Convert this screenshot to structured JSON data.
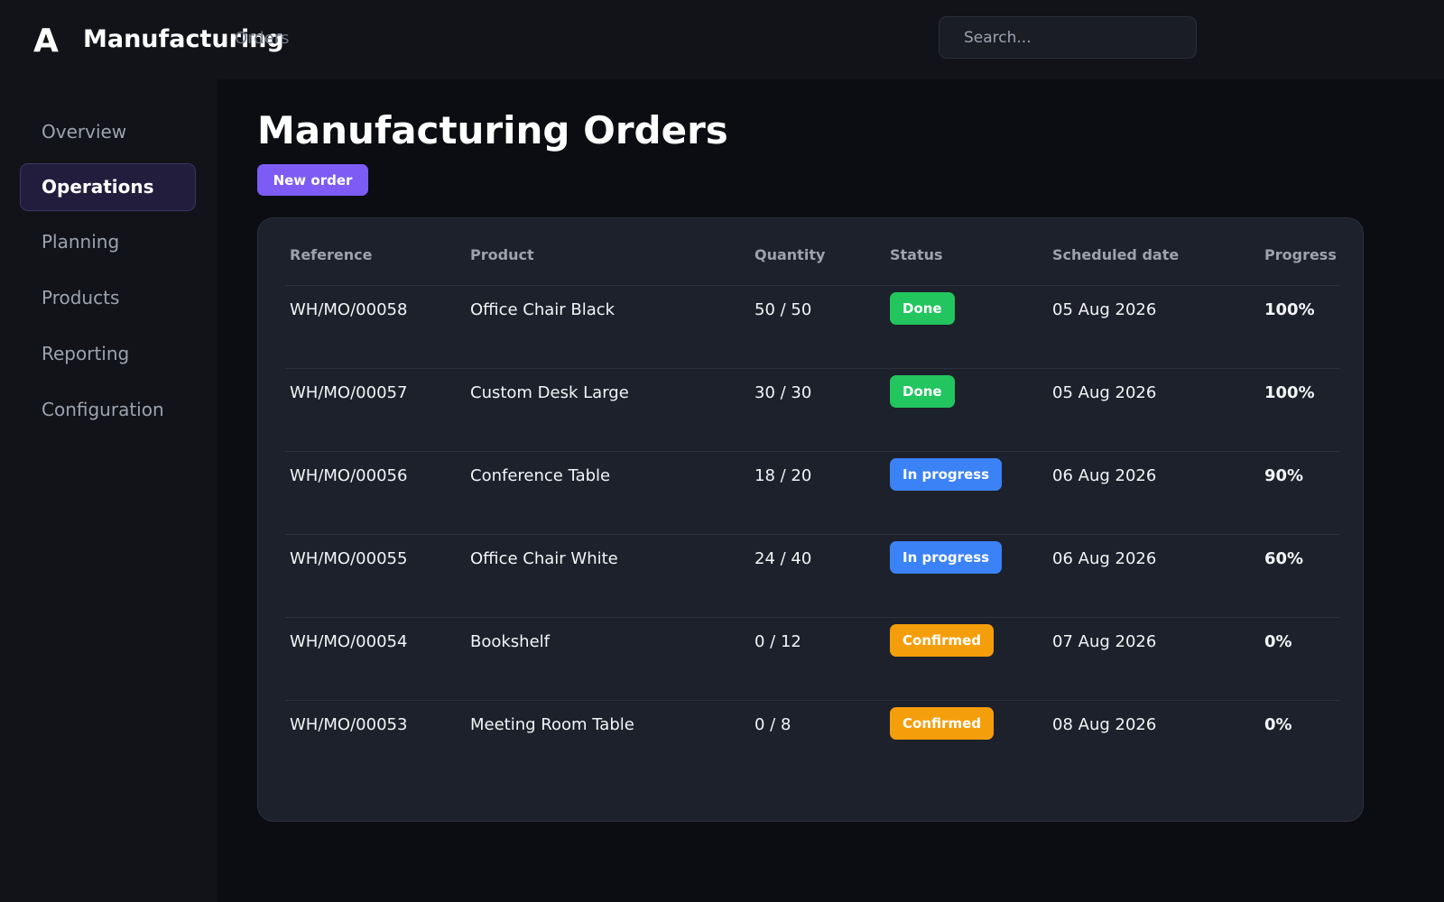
{
  "app": {
    "logo": "A",
    "title": "Manufacturing",
    "breadcrumb": "Orders"
  },
  "search": {
    "placeholder": "Search..."
  },
  "sidebar": {
    "active": "Operations",
    "items": [
      {
        "label": "Overview"
      },
      {
        "label": "Operations"
      },
      {
        "label": "Planning"
      },
      {
        "label": "Products"
      },
      {
        "label": "Reporting"
      },
      {
        "label": "Configuration"
      }
    ]
  },
  "main": {
    "title": "Manufacturing Orders",
    "new_order_label": "New order"
  },
  "table": {
    "columns": [
      "Reference",
      "Product",
      "Quantity",
      "Status",
      "Scheduled date",
      "Progress"
    ],
    "rows": [
      {
        "reference": "WH/MO/00058",
        "product": "Office Chair Black",
        "quantity": "50 / 50",
        "status": "Done",
        "status_kind": "done",
        "date": "05 Aug 2026",
        "progress": "100%"
      },
      {
        "reference": "WH/MO/00057",
        "product": "Custom Desk Large",
        "quantity": "30 / 30",
        "status": "Done",
        "status_kind": "done",
        "date": "05 Aug 2026",
        "progress": "100%"
      },
      {
        "reference": "WH/MO/00056",
        "product": "Conference Table",
        "quantity": "18 / 20",
        "status": "In progress",
        "status_kind": "progress",
        "date": "06 Aug 2026",
        "progress": "90%"
      },
      {
        "reference": "WH/MO/00055",
        "product": "Office Chair White",
        "quantity": "24 / 40",
        "status": "In progress",
        "status_kind": "progress",
        "date": "06 Aug 2026",
        "progress": "60%"
      },
      {
        "reference": "WH/MO/00054",
        "product": "Bookshelf",
        "quantity": "0 / 12",
        "status": "Confirmed",
        "status_kind": "confirmed",
        "date": "07 Aug 2026",
        "progress": "0%"
      },
      {
        "reference": "WH/MO/00053",
        "product": "Meeting Room Table",
        "quantity": "0 / 8",
        "status": "Confirmed",
        "status_kind": "confirmed",
        "date": "08 Aug 2026",
        "progress": "0%"
      }
    ]
  },
  "colors": {
    "accent": "#7c5cf5",
    "status_done": "#22c55e",
    "status_in_progress": "#3b82f6",
    "status_confirmed": "#f59e0b"
  }
}
